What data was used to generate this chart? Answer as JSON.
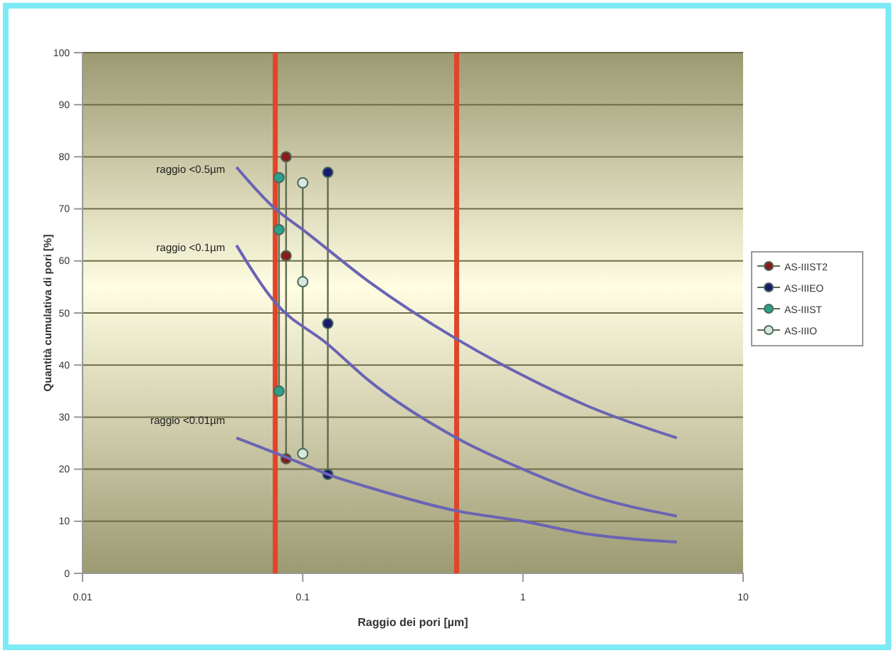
{
  "chart_data": {
    "type": "line",
    "xlabel": "Raggio dei pori [µm]",
    "ylabel": "Quantità cumulativa di pori  [%]",
    "log": "x",
    "xlim": [
      0.01,
      10
    ],
    "xticks": [
      0.01,
      0.1,
      1,
      10
    ],
    "ylim": [
      0,
      100
    ],
    "yticks": [
      0,
      10,
      20,
      30,
      40,
      50,
      60,
      70,
      80,
      90,
      100
    ],
    "grid": "y",
    "legend": "right",
    "ref_lines": [
      {
        "axis": "x",
        "value": 0.075,
        "color": "#e0452a"
      },
      {
        "axis": "x",
        "value": 0.5,
        "color": "#e0452a"
      }
    ],
    "series": [
      {
        "name": "AS-IIIST2",
        "color": "#8b1a1a",
        "marker": "circle",
        "x": [
          0.084,
          0.084,
          0.084
        ],
        "values": [
          80,
          61,
          22
        ]
      },
      {
        "name": "AS-IIIEO",
        "color": "#1a1a6e",
        "marker": "circle",
        "x": [
          0.13,
          0.13,
          0.13
        ],
        "values": [
          77,
          48,
          19
        ]
      },
      {
        "name": "AS-IIIST",
        "color": "#2aa08a",
        "marker": "circle",
        "x": [
          0.078,
          0.078,
          0.078
        ],
        "values": [
          76,
          66,
          35
        ]
      },
      {
        "name": "AS-IIIO",
        "color": "#d8e8e0",
        "marker": "circle",
        "x": [
          0.1,
          0.1,
          0.1
        ],
        "values": [
          75,
          56,
          23
        ]
      },
      {
        "name": "raggio <0.5µm",
        "color": "#6a64b4",
        "marker": "none",
        "x": [
          0.05,
          0.075,
          0.1,
          0.2,
          0.5,
          1,
          2,
          5
        ],
        "values": [
          78,
          70,
          66,
          56,
          45,
          38,
          32,
          26
        ]
      },
      {
        "name": "raggio <0.1µm",
        "color": "#6a64b4",
        "marker": "none",
        "x": [
          0.05,
          0.075,
          0.13,
          0.2,
          0.5,
          1,
          2,
          5
        ],
        "values": [
          63,
          52,
          44,
          37,
          26,
          20,
          15,
          11
        ]
      },
      {
        "name": "raggio <0.01µm",
        "color": "#6a64b4",
        "marker": "none",
        "x": [
          0.05,
          0.1,
          0.13,
          0.2,
          0.5,
          1,
          2,
          5
        ],
        "values": [
          26,
          21,
          19,
          16.5,
          12,
          10,
          7.5,
          6
        ]
      }
    ]
  }
}
